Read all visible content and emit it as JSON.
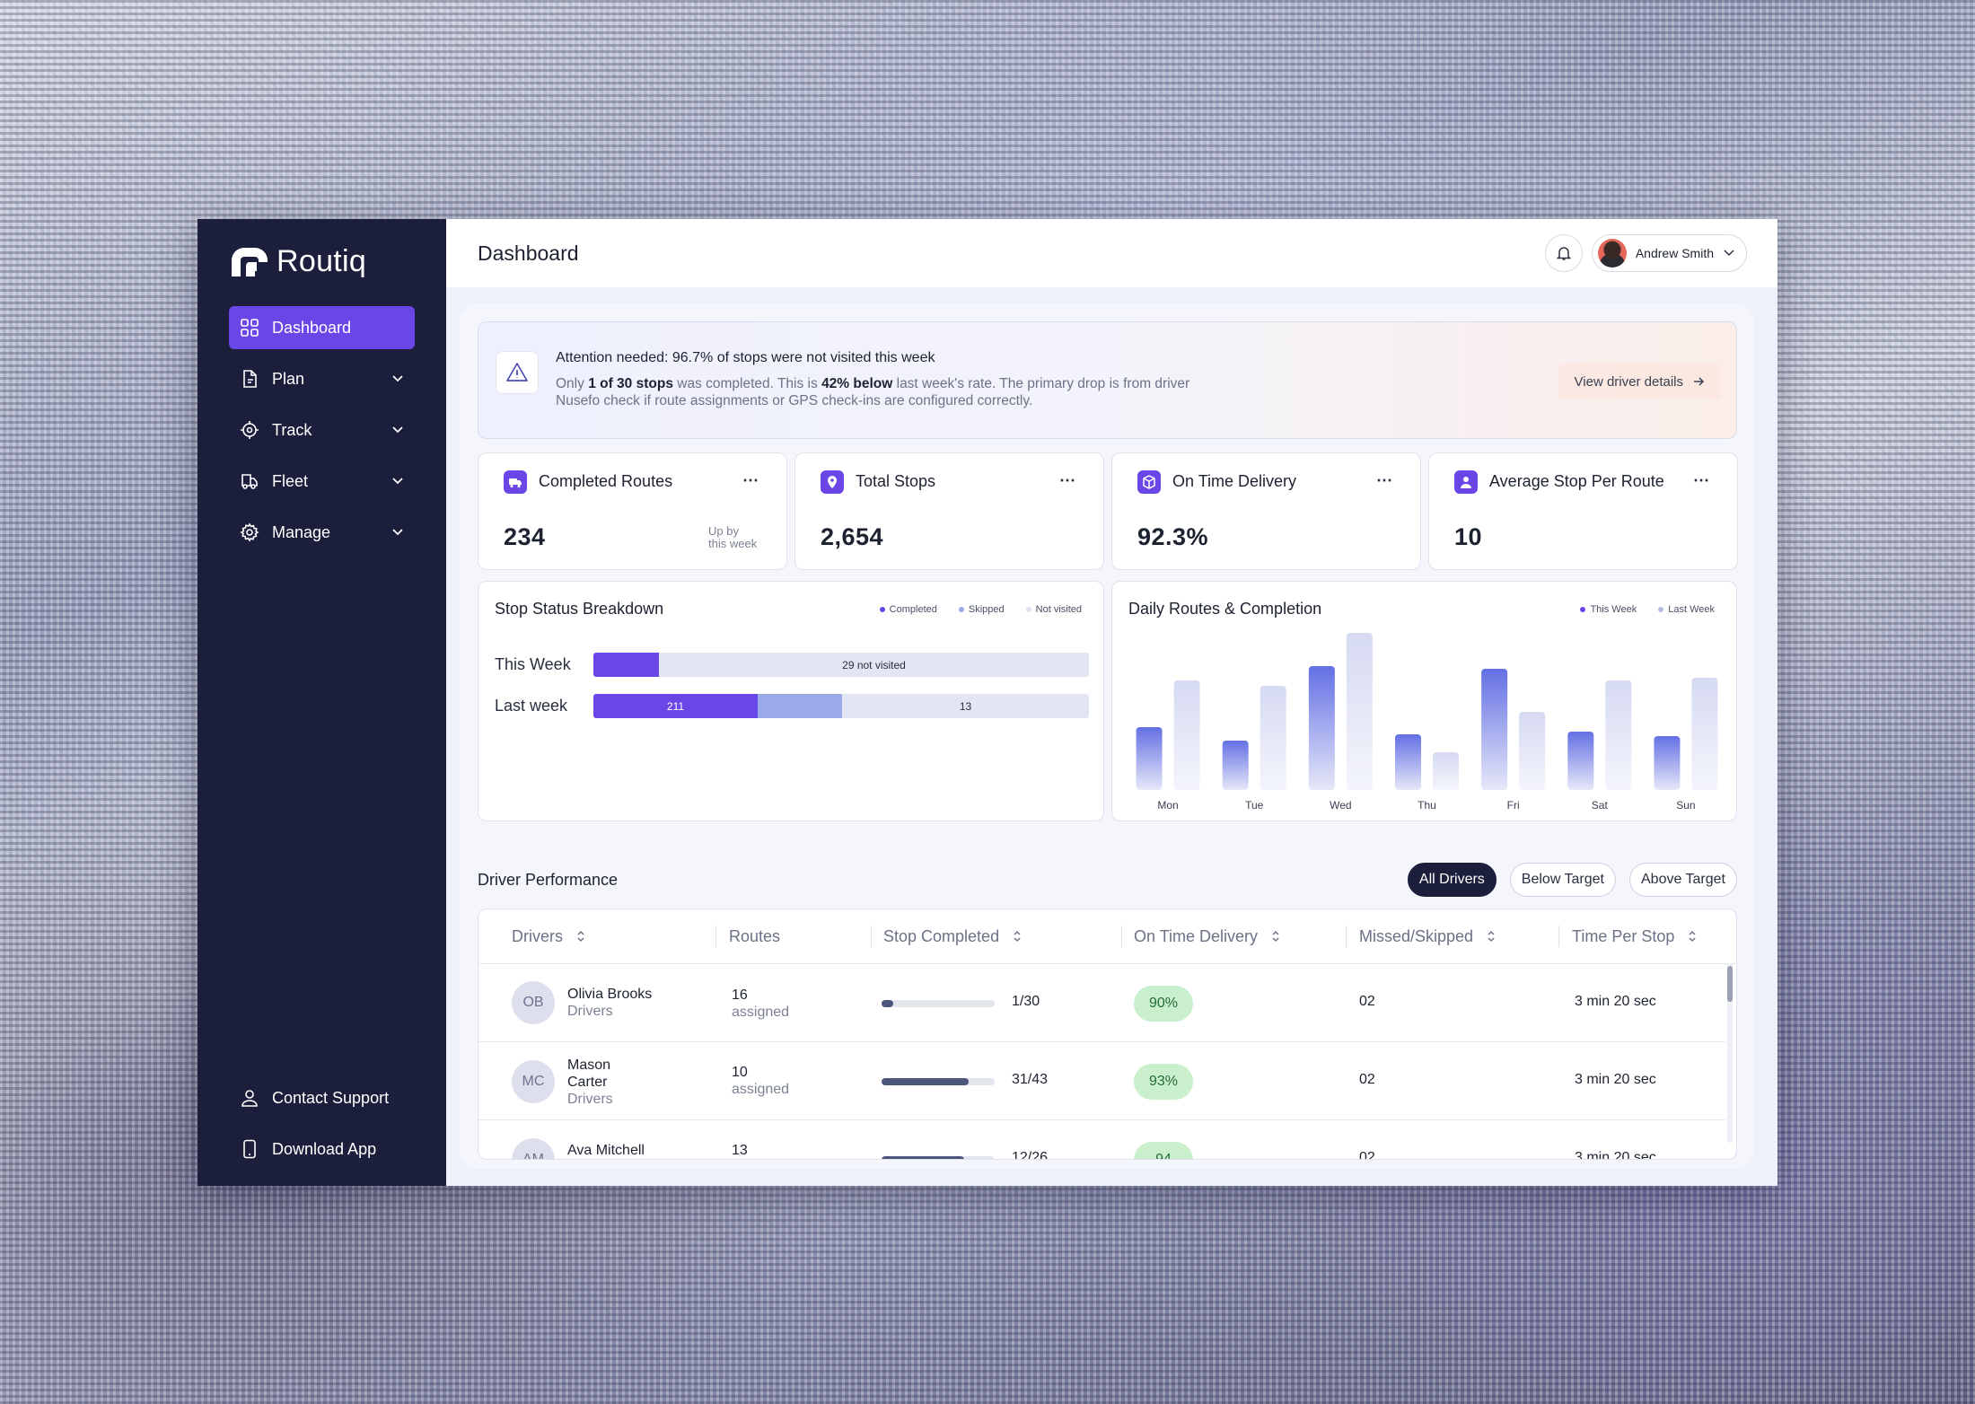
{
  "app": {
    "name": "Routiq"
  },
  "sidebar": {
    "items": [
      {
        "label": "Dashboard",
        "icon": "grid-icon",
        "active": true
      },
      {
        "label": "Plan",
        "icon": "file-icon"
      },
      {
        "label": "Track",
        "icon": "target-icon"
      },
      {
        "label": "Fleet",
        "icon": "truck-icon"
      },
      {
        "label": "Manage",
        "icon": "gear-icon"
      }
    ],
    "bottom": [
      {
        "label": "Contact Support",
        "icon": "user-icon"
      },
      {
        "label": "Download App",
        "icon": "phone-icon"
      }
    ]
  },
  "header": {
    "title": "Dashboard",
    "user_name": "Andrew Smith"
  },
  "alert": {
    "title": "Attention needed: 96.7% of stops were not visited this week",
    "desc_1": "Only ",
    "desc_b1": "1 of 30 stops",
    "desc_2": " was completed. This is ",
    "desc_b2": "42% below",
    "desc_3": " last week's rate. The primary drop is from driver Nusefo  check if route assignments or GPS check-ins are configured correctly.",
    "button": "View driver details"
  },
  "kpis": [
    {
      "label": "Completed Routes",
      "value": "234",
      "note": "Up by\nthis week",
      "more": "⋯"
    },
    {
      "label": "Total Stops",
      "value": "2,654",
      "more": "⋯"
    },
    {
      "label": "On Time Delivery",
      "value": "92.3%",
      "more": "⋯"
    },
    {
      "label": "Average Stop Per Route",
      "value": "10",
      "more": "⋯"
    }
  ],
  "stop_status": {
    "title": "Stop Status Breakdown",
    "legend": [
      "Completed",
      "Skipped",
      "Not visited"
    ],
    "rows": [
      {
        "label": "This Week",
        "not_visited_label": "29 not visited"
      },
      {
        "label": "Last week",
        "completed_label": "211",
        "not_visited_label": "13"
      }
    ]
  },
  "daily_chart": {
    "title": "Daily Routes & Completion",
    "legend": [
      "This Week",
      "Last Week"
    ]
  },
  "chart_data": {
    "type": "bar",
    "categories": [
      "Mon",
      "Tue",
      "Wed",
      "Thu",
      "Fri",
      "Sat",
      "Sun"
    ],
    "series": [
      {
        "name": "This Week",
        "values": [
          70,
          55,
          138,
          62,
          135,
          65,
          60
        ]
      },
      {
        "name": "Last Week",
        "values": [
          122,
          116,
          175,
          42,
          87,
          122,
          125
        ]
      }
    ],
    "ylim": [
      0,
      180
    ],
    "colors": {
      "This Week": "#6b73e6",
      "Last Week": "#d8dcf0"
    },
    "grid": false,
    "legend_position": "top-right"
  },
  "driver_performance": {
    "title": "Driver Performance",
    "filters": [
      {
        "label": "All Drivers",
        "active": true
      },
      {
        "label": "Below Target"
      },
      {
        "label": "Above Target"
      }
    ],
    "columns": [
      "Drivers",
      "Routes",
      "Stop Completed",
      "On Time Delivery",
      "Missed/Skipped",
      "Time Per Stop"
    ],
    "rows": [
      {
        "initials": "OB",
        "name": "Olivia Brooks",
        "role": "Drivers",
        "routes": "16",
        "routes_sub": "assigned",
        "stops": "1/30",
        "progress": 0.033,
        "on_time": "90%",
        "missed": "02",
        "time": "3 min 20 sec"
      },
      {
        "initials": "MC",
        "name": "Mason Carter",
        "role": "Drivers",
        "routes": "10",
        "routes_sub": "assigned",
        "stops": "31/43",
        "progress": 0.72,
        "on_time": "93%",
        "missed": "02",
        "time": "3 min 20 sec"
      },
      {
        "initials": "AM",
        "name": "Ava Mitchell",
        "role": "Drivers",
        "routes": "13",
        "routes_sub": "assigned",
        "stops": "12/26",
        "progress": 0.46,
        "on_time": "94",
        "missed": "02",
        "time": "3 min 20 sec"
      }
    ]
  },
  "colors": {
    "accent": "#6a46e6",
    "sidebar": "#1b1f3b",
    "success_bg": "#c9efcd"
  }
}
